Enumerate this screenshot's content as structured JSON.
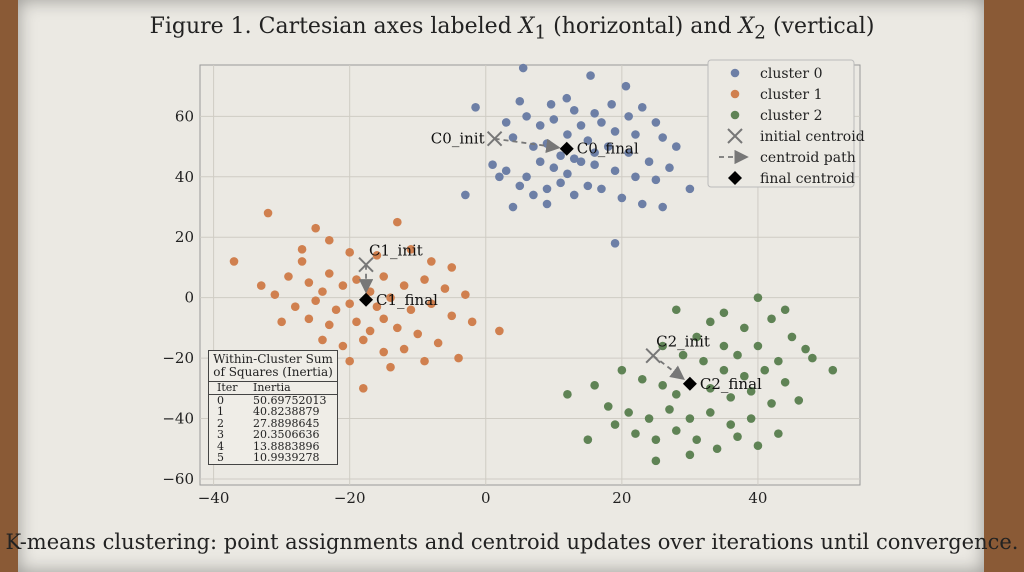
{
  "title": {
    "prefix": "Figure 1. Cartesian axes labeled ",
    "x1": "X",
    "x1_sub": "1",
    "middle": " (horizontal) and ",
    "x2": "X",
    "x2_sub": "2",
    "suffix": " (vertical)"
  },
  "caption": "K-means clustering: point assignments and centroid updates over iterations until convergence.",
  "chart_data": {
    "type": "scatter",
    "xlim": [
      -42,
      55
    ],
    "ylim": [
      -62,
      77
    ],
    "xticks": [
      -40,
      -20,
      0,
      20,
      40
    ],
    "yticks": [
      -60,
      -40,
      -20,
      0,
      20,
      40,
      60
    ],
    "grid": true,
    "legend_placement": "top-right",
    "colors": {
      "cluster 0": "#6d7fa6",
      "cluster 1": "#d0804f",
      "cluster 2": "#5f8355"
    },
    "legend": [
      "cluster 0",
      "cluster 1",
      "cluster 2",
      "initial centroid",
      "centroid path",
      "final centroid"
    ],
    "series": [
      {
        "name": "cluster 0",
        "points": [
          [
            5.5,
            76
          ],
          [
            15.4,
            73.5
          ],
          [
            20.6,
            70
          ],
          [
            -1.5,
            63
          ],
          [
            5,
            65
          ],
          [
            11.9,
            66
          ],
          [
            9.6,
            64
          ],
          [
            13,
            62
          ],
          [
            16,
            61
          ],
          [
            18.5,
            64
          ],
          [
            21,
            60
          ],
          [
            23,
            63
          ],
          [
            25,
            58
          ],
          [
            3,
            58
          ],
          [
            6,
            60
          ],
          [
            8,
            57
          ],
          [
            10,
            59
          ],
          [
            14,
            57
          ],
          [
            17,
            58
          ],
          [
            19,
            55
          ],
          [
            22,
            54
          ],
          [
            26,
            53
          ],
          [
            28,
            50
          ],
          [
            4,
            53
          ],
          [
            7,
            50
          ],
          [
            9,
            51
          ],
          [
            12,
            54
          ],
          [
            15,
            52
          ],
          [
            18,
            50
          ],
          [
            21,
            48
          ],
          [
            24,
            45
          ],
          [
            1,
            44
          ],
          [
            3,
            42
          ],
          [
            6,
            40
          ],
          [
            8,
            45
          ],
          [
            10,
            43
          ],
          [
            12,
            41
          ],
          [
            14,
            45
          ],
          [
            16,
            44
          ],
          [
            19,
            42
          ],
          [
            22,
            40
          ],
          [
            25,
            39
          ],
          [
            27,
            43
          ],
          [
            2,
            40
          ],
          [
            5,
            37
          ],
          [
            7,
            34
          ],
          [
            9,
            36
          ],
          [
            11,
            38
          ],
          [
            13,
            34
          ],
          [
            15,
            37
          ],
          [
            17,
            36
          ],
          [
            20,
            33
          ],
          [
            23,
            31
          ],
          [
            26,
            30
          ],
          [
            4,
            30
          ],
          [
            9,
            31
          ],
          [
            -3,
            34
          ],
          [
            19,
            18
          ],
          [
            30,
            36
          ],
          [
            11,
            47
          ],
          [
            13,
            46
          ],
          [
            16,
            48
          ]
        ]
      },
      {
        "name": "cluster 1",
        "points": [
          [
            -37,
            12
          ],
          [
            -32,
            28
          ],
          [
            -13,
            25
          ],
          [
            2,
            -11
          ],
          [
            -18,
            -30
          ],
          [
            -25,
            23
          ],
          [
            -23,
            19
          ],
          [
            -20,
            15
          ],
          [
            -16,
            14
          ],
          [
            -11,
            16
          ],
          [
            -8,
            12
          ],
          [
            -5,
            10
          ],
          [
            -27,
            12
          ],
          [
            -29,
            7
          ],
          [
            -33,
            4
          ],
          [
            -31,
            1
          ],
          [
            -26,
            5
          ],
          [
            -23,
            8
          ],
          [
            -21,
            4
          ],
          [
            -19,
            6
          ],
          [
            -15,
            7
          ],
          [
            -12,
            4
          ],
          [
            -9,
            6
          ],
          [
            -6,
            3
          ],
          [
            -3,
            1
          ],
          [
            -28,
            -3
          ],
          [
            -25,
            -1
          ],
          [
            -22,
            -4
          ],
          [
            -20,
            -2
          ],
          [
            -16,
            -3
          ],
          [
            -14,
            0
          ],
          [
            -11,
            -4
          ],
          [
            -8,
            -2
          ],
          [
            -5,
            -6
          ],
          [
            -2,
            -8
          ],
          [
            -30,
            -8
          ],
          [
            -26,
            -7
          ],
          [
            -23,
            -9
          ],
          [
            -19,
            -8
          ],
          [
            -17,
            -11
          ],
          [
            -15,
            -7
          ],
          [
            -13,
            -10
          ],
          [
            -10,
            -12
          ],
          [
            -7,
            -15
          ],
          [
            -4,
            -20
          ],
          [
            -24,
            -14
          ],
          [
            -21,
            -16
          ],
          [
            -18,
            -14
          ],
          [
            -15,
            -18
          ],
          [
            -12,
            -17
          ],
          [
            -9,
            -21
          ],
          [
            -20,
            -21
          ],
          [
            -14,
            -23
          ],
          [
            -27,
            16
          ],
          [
            -24,
            2
          ],
          [
            -17,
            2
          ]
        ]
      },
      {
        "name": "cluster 2",
        "points": [
          [
            51,
            -24
          ],
          [
            40,
            0
          ],
          [
            28,
            -4
          ],
          [
            12,
            -32
          ],
          [
            15,
            -47
          ],
          [
            33,
            -8
          ],
          [
            38,
            -10
          ],
          [
            42,
            -7
          ],
          [
            45,
            -13
          ],
          [
            47,
            -17
          ],
          [
            31,
            -13
          ],
          [
            35,
            -16
          ],
          [
            37,
            -19
          ],
          [
            40,
            -16
          ],
          [
            43,
            -21
          ],
          [
            26,
            -16
          ],
          [
            29,
            -19
          ],
          [
            32,
            -21
          ],
          [
            35,
            -24
          ],
          [
            38,
            -26
          ],
          [
            41,
            -24
          ],
          [
            44,
            -28
          ],
          [
            20,
            -24
          ],
          [
            23,
            -27
          ],
          [
            26,
            -29
          ],
          [
            28,
            -32
          ],
          [
            33,
            -30
          ],
          [
            36,
            -33
          ],
          [
            39,
            -31
          ],
          [
            42,
            -35
          ],
          [
            46,
            -34
          ],
          [
            18,
            -36
          ],
          [
            21,
            -38
          ],
          [
            24,
            -40
          ],
          [
            27,
            -37
          ],
          [
            30,
            -40
          ],
          [
            33,
            -38
          ],
          [
            36,
            -42
          ],
          [
            39,
            -40
          ],
          [
            43,
            -45
          ],
          [
            19,
            -42
          ],
          [
            22,
            -45
          ],
          [
            25,
            -47
          ],
          [
            28,
            -44
          ],
          [
            31,
            -47
          ],
          [
            34,
            -50
          ],
          [
            37,
            -46
          ],
          [
            40,
            -49
          ],
          [
            25,
            -54
          ],
          [
            30,
            -52
          ],
          [
            16,
            -29
          ],
          [
            48,
            -20
          ],
          [
            35,
            -5
          ],
          [
            44,
            -4
          ]
        ]
      }
    ],
    "centroids": [
      {
        "init_label": "C0_init",
        "final_label": "C0_final",
        "init": [
          1.3,
          52.6
        ],
        "final": [
          11.9,
          49.3
        ]
      },
      {
        "init_label": "C1_init",
        "final_label": "C1_final",
        "init": [
          -17.6,
          10.9
        ],
        "final": [
          -17.6,
          -0.7
        ]
      },
      {
        "init_label": "C2_init",
        "final_label": "C2_final",
        "init": [
          24.6,
          -19.2
        ],
        "final": [
          30,
          -28.5
        ]
      }
    ],
    "inertia_table": {
      "title_line1": "Within-Cluster Sum",
      "title_line2": "of Squares (Inertia)",
      "headers": [
        "Iter",
        "Inertia"
      ],
      "rows": [
        [
          "0",
          "50.69752013"
        ],
        [
          "1",
          "40.8238879"
        ],
        [
          "2",
          "27.8898645"
        ],
        [
          "3",
          "20.3506636"
        ],
        [
          "4",
          "13.8883896"
        ],
        [
          "5",
          "10.9939278"
        ]
      ]
    }
  }
}
